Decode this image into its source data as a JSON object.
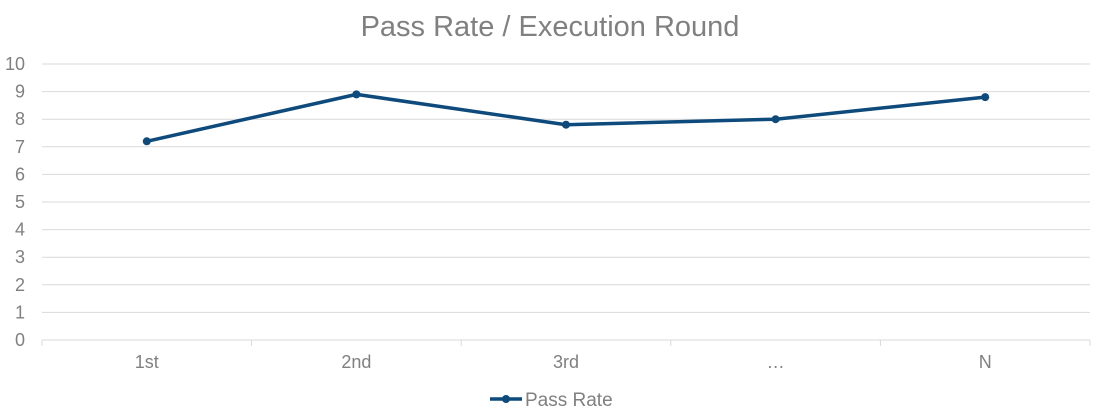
{
  "chart_data": {
    "type": "line",
    "title": "Pass Rate /  Execution Round",
    "xlabel": "",
    "ylabel": "",
    "categories": [
      "1st",
      "2nd",
      "3rd",
      "…",
      "N"
    ],
    "ylim": [
      0,
      10
    ],
    "yticks": [
      0,
      1,
      2,
      3,
      4,
      5,
      6,
      7,
      8,
      9,
      10
    ],
    "grid": true,
    "legend_position": "bottom",
    "series": [
      {
        "name": "Pass Rate",
        "values": [
          7.2,
          8.9,
          7.8,
          8.0,
          8.8
        ],
        "color": "#0e4a7b"
      }
    ]
  }
}
